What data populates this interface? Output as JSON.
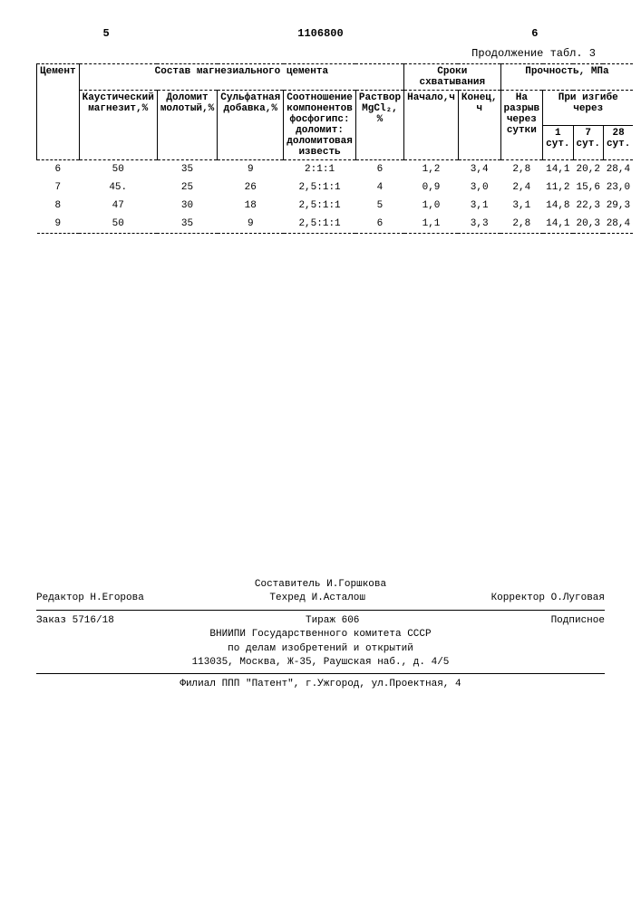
{
  "header": {
    "page_left": "5",
    "patent_no": "1106800",
    "page_right": "6",
    "continuation": "Продолжение табл. 3"
  },
  "table": {
    "group_labels": {
      "cement": "Цемент",
      "composition": "Состав магнезиального цемента",
      "setting": "Сроки схватывания",
      "strength": "Прочность, МПа"
    },
    "sub_labels": {
      "caustic": "Каустический магнезит,%",
      "dolomite": "Доломит молотый,%",
      "sulfate": "Сульфатная добавка,%",
      "ratio": "Соотношение компонентов фосфогипс: доломит: доломитовая известь",
      "mgcl2": "Раствор MgCl₂, %",
      "start": "Начало,ч",
      "end": "Конец, ч",
      "rupture": "На разрыв через сутки",
      "bending": "При изгибе через",
      "d1": "1 сут.",
      "d7": "7 сут.",
      "d28": "28 сут."
    },
    "rows": [
      {
        "n": "6",
        "c1": "50",
        "c2": "35",
        "c3": "9",
        "c4": "2:1:1",
        "c5": "6",
        "s1": "1,2",
        "s2": "3,4",
        "p1": "2,8",
        "b1": "14,1",
        "b7": "20,2",
        "b28": "28,4"
      },
      {
        "n": "7",
        "c1": "45.",
        "c2": "25",
        "c3": "26",
        "c4": "2,5:1:1",
        "c5": "4",
        "s1": "0,9",
        "s2": "3,0",
        "p1": "2,4",
        "b1": "11,2",
        "b7": "15,6",
        "b28": "23,0"
      },
      {
        "n": "8",
        "c1": "47",
        "c2": "30",
        "c3": "18",
        "c4": "2,5:1:1",
        "c5": "5",
        "s1": "1,0",
        "s2": "3,1",
        "p1": "3,1",
        "b1": "14,8",
        "b7": "22,3",
        "b28": "29,3"
      },
      {
        "n": "9",
        "c1": "50",
        "c2": "35",
        "c3": "9",
        "c4": "2,5:1:1",
        "c5": "6",
        "s1": "1,1",
        "s2": "3,3",
        "p1": "2,8",
        "b1": "14,1",
        "b7": "20,3",
        "b28": "28,4"
      }
    ]
  },
  "footer": {
    "compiler": "Составитель И.Горшкова",
    "editor": "Редактор Н.Егорова",
    "techred": "Техред И.Асталош",
    "corrector": "Корректор О.Луговая",
    "order": "Заказ 5716/18",
    "tirazh": "Тираж 606",
    "podpis": "Подписное",
    "org1": "ВНИИПИ Государственного комитета СССР",
    "org2": "по делам изобретений и открытий",
    "addr": "113035, Москва, Ж-35, Раушская наб., д. 4/5",
    "filial": "Филиал ППП \"Патент\", г.Ужгород, ул.Проектная, 4"
  }
}
